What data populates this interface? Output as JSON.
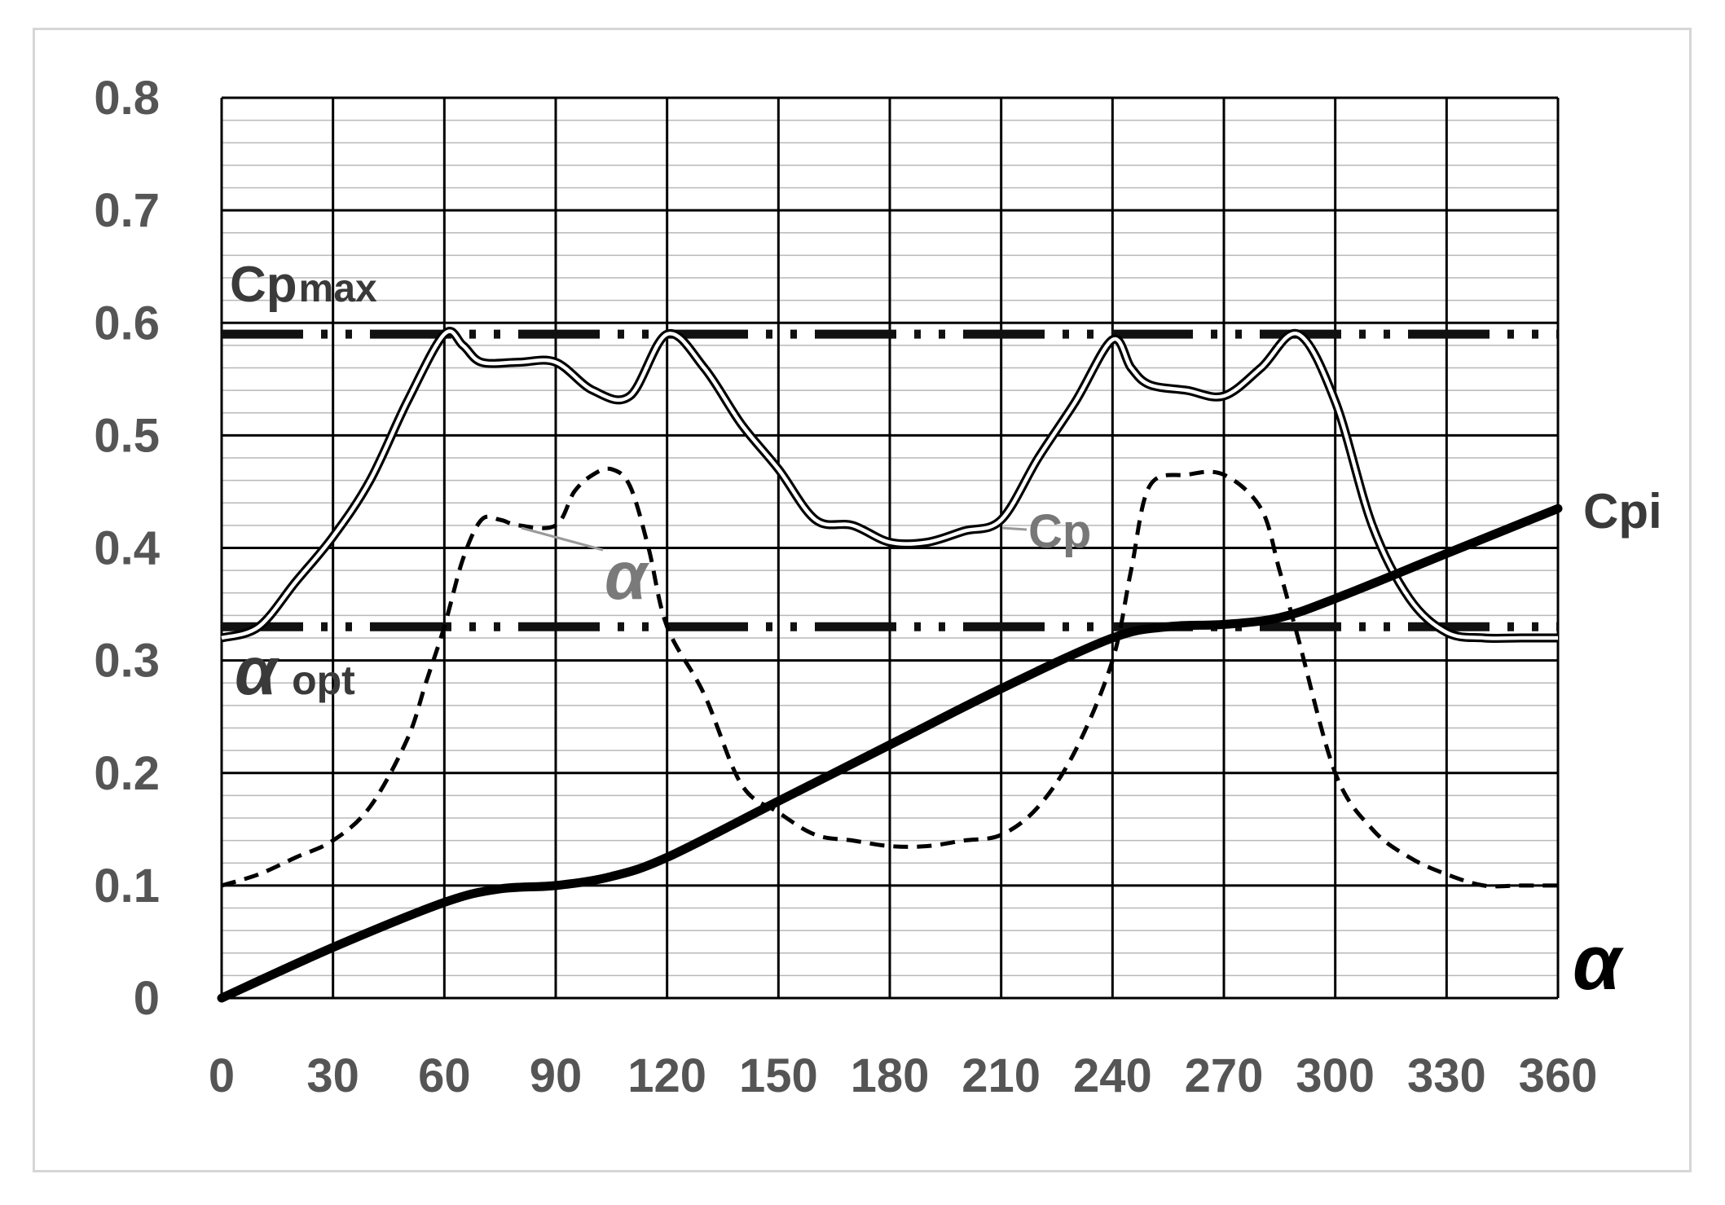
{
  "chart_data": {
    "type": "line",
    "xlim": [
      0,
      360
    ],
    "ylim": [
      0,
      0.8
    ],
    "x_ticks": [
      "0",
      "30",
      "60",
      "90",
      "120",
      "150",
      "180",
      "210",
      "240",
      "270",
      "300",
      "330",
      "360"
    ],
    "y_ticks": [
      "0",
      "0.1",
      "0.2",
      "0.3",
      "0.4",
      "0.5",
      "0.6",
      "0.7",
      "0.8"
    ],
    "grid": true,
    "x_axis_symbol": "α",
    "annotations": {
      "cpmax_main": "Cp",
      "cpmax_sub": "max",
      "aopt_main": "α",
      "aopt_sub": "opt",
      "alpha_curve": "α",
      "cp_curve": "Cp",
      "cpi_curve": "Cpi"
    },
    "reference_lines": [
      {
        "name": "Cpmax",
        "y": 0.59
      },
      {
        "name": "αopt",
        "y": 0.33
      }
    ],
    "series": [
      {
        "name": "Cp",
        "x": [
          0,
          10,
          20,
          30,
          40,
          50,
          60,
          65,
          70,
          80,
          90,
          100,
          110,
          120,
          130,
          140,
          150,
          160,
          170,
          180,
          190,
          200,
          210,
          220,
          230,
          240,
          245,
          250,
          260,
          270,
          280,
          290,
          300,
          310,
          320,
          330,
          340,
          350,
          360
        ],
        "y": [
          0.32,
          0.33,
          0.37,
          0.41,
          0.46,
          0.53,
          0.59,
          0.58,
          0.565,
          0.565,
          0.565,
          0.54,
          0.535,
          0.59,
          0.56,
          0.51,
          0.47,
          0.425,
          0.42,
          0.405,
          0.405,
          0.415,
          0.425,
          0.48,
          0.53,
          0.585,
          0.56,
          0.545,
          0.54,
          0.535,
          0.56,
          0.59,
          0.53,
          0.42,
          0.355,
          0.325,
          0.32,
          0.32,
          0.32
        ]
      },
      {
        "name": "α",
        "x": [
          0,
          10,
          20,
          30,
          40,
          50,
          55,
          60,
          65,
          70,
          75,
          80,
          90,
          95,
          100,
          105,
          110,
          115,
          120,
          130,
          140,
          150,
          160,
          170,
          180,
          190,
          200,
          210,
          220,
          230,
          240,
          245,
          250,
          260,
          270,
          280,
          285,
          290,
          300,
          310,
          320,
          330,
          340,
          350,
          360
        ],
        "y": [
          0.1,
          0.11,
          0.125,
          0.14,
          0.17,
          0.23,
          0.28,
          0.33,
          0.39,
          0.425,
          0.425,
          0.42,
          0.42,
          0.45,
          0.465,
          0.47,
          0.455,
          0.4,
          0.33,
          0.27,
          0.19,
          0.165,
          0.145,
          0.14,
          0.135,
          0.135,
          0.14,
          0.145,
          0.17,
          0.22,
          0.3,
          0.38,
          0.455,
          0.465,
          0.465,
          0.435,
          0.38,
          0.32,
          0.2,
          0.15,
          0.125,
          0.11,
          0.1,
          0.1,
          0.1
        ]
      },
      {
        "name": "Cpi",
        "x": [
          0,
          30,
          60,
          75,
          90,
          105,
          120,
          150,
          180,
          210,
          240,
          255,
          270,
          285,
          300,
          330,
          360
        ],
        "y": [
          0,
          0.045,
          0.085,
          0.097,
          0.1,
          0.108,
          0.125,
          0.175,
          0.225,
          0.275,
          0.32,
          0.33,
          0.332,
          0.338,
          0.355,
          0.395,
          0.435
        ]
      }
    ]
  }
}
